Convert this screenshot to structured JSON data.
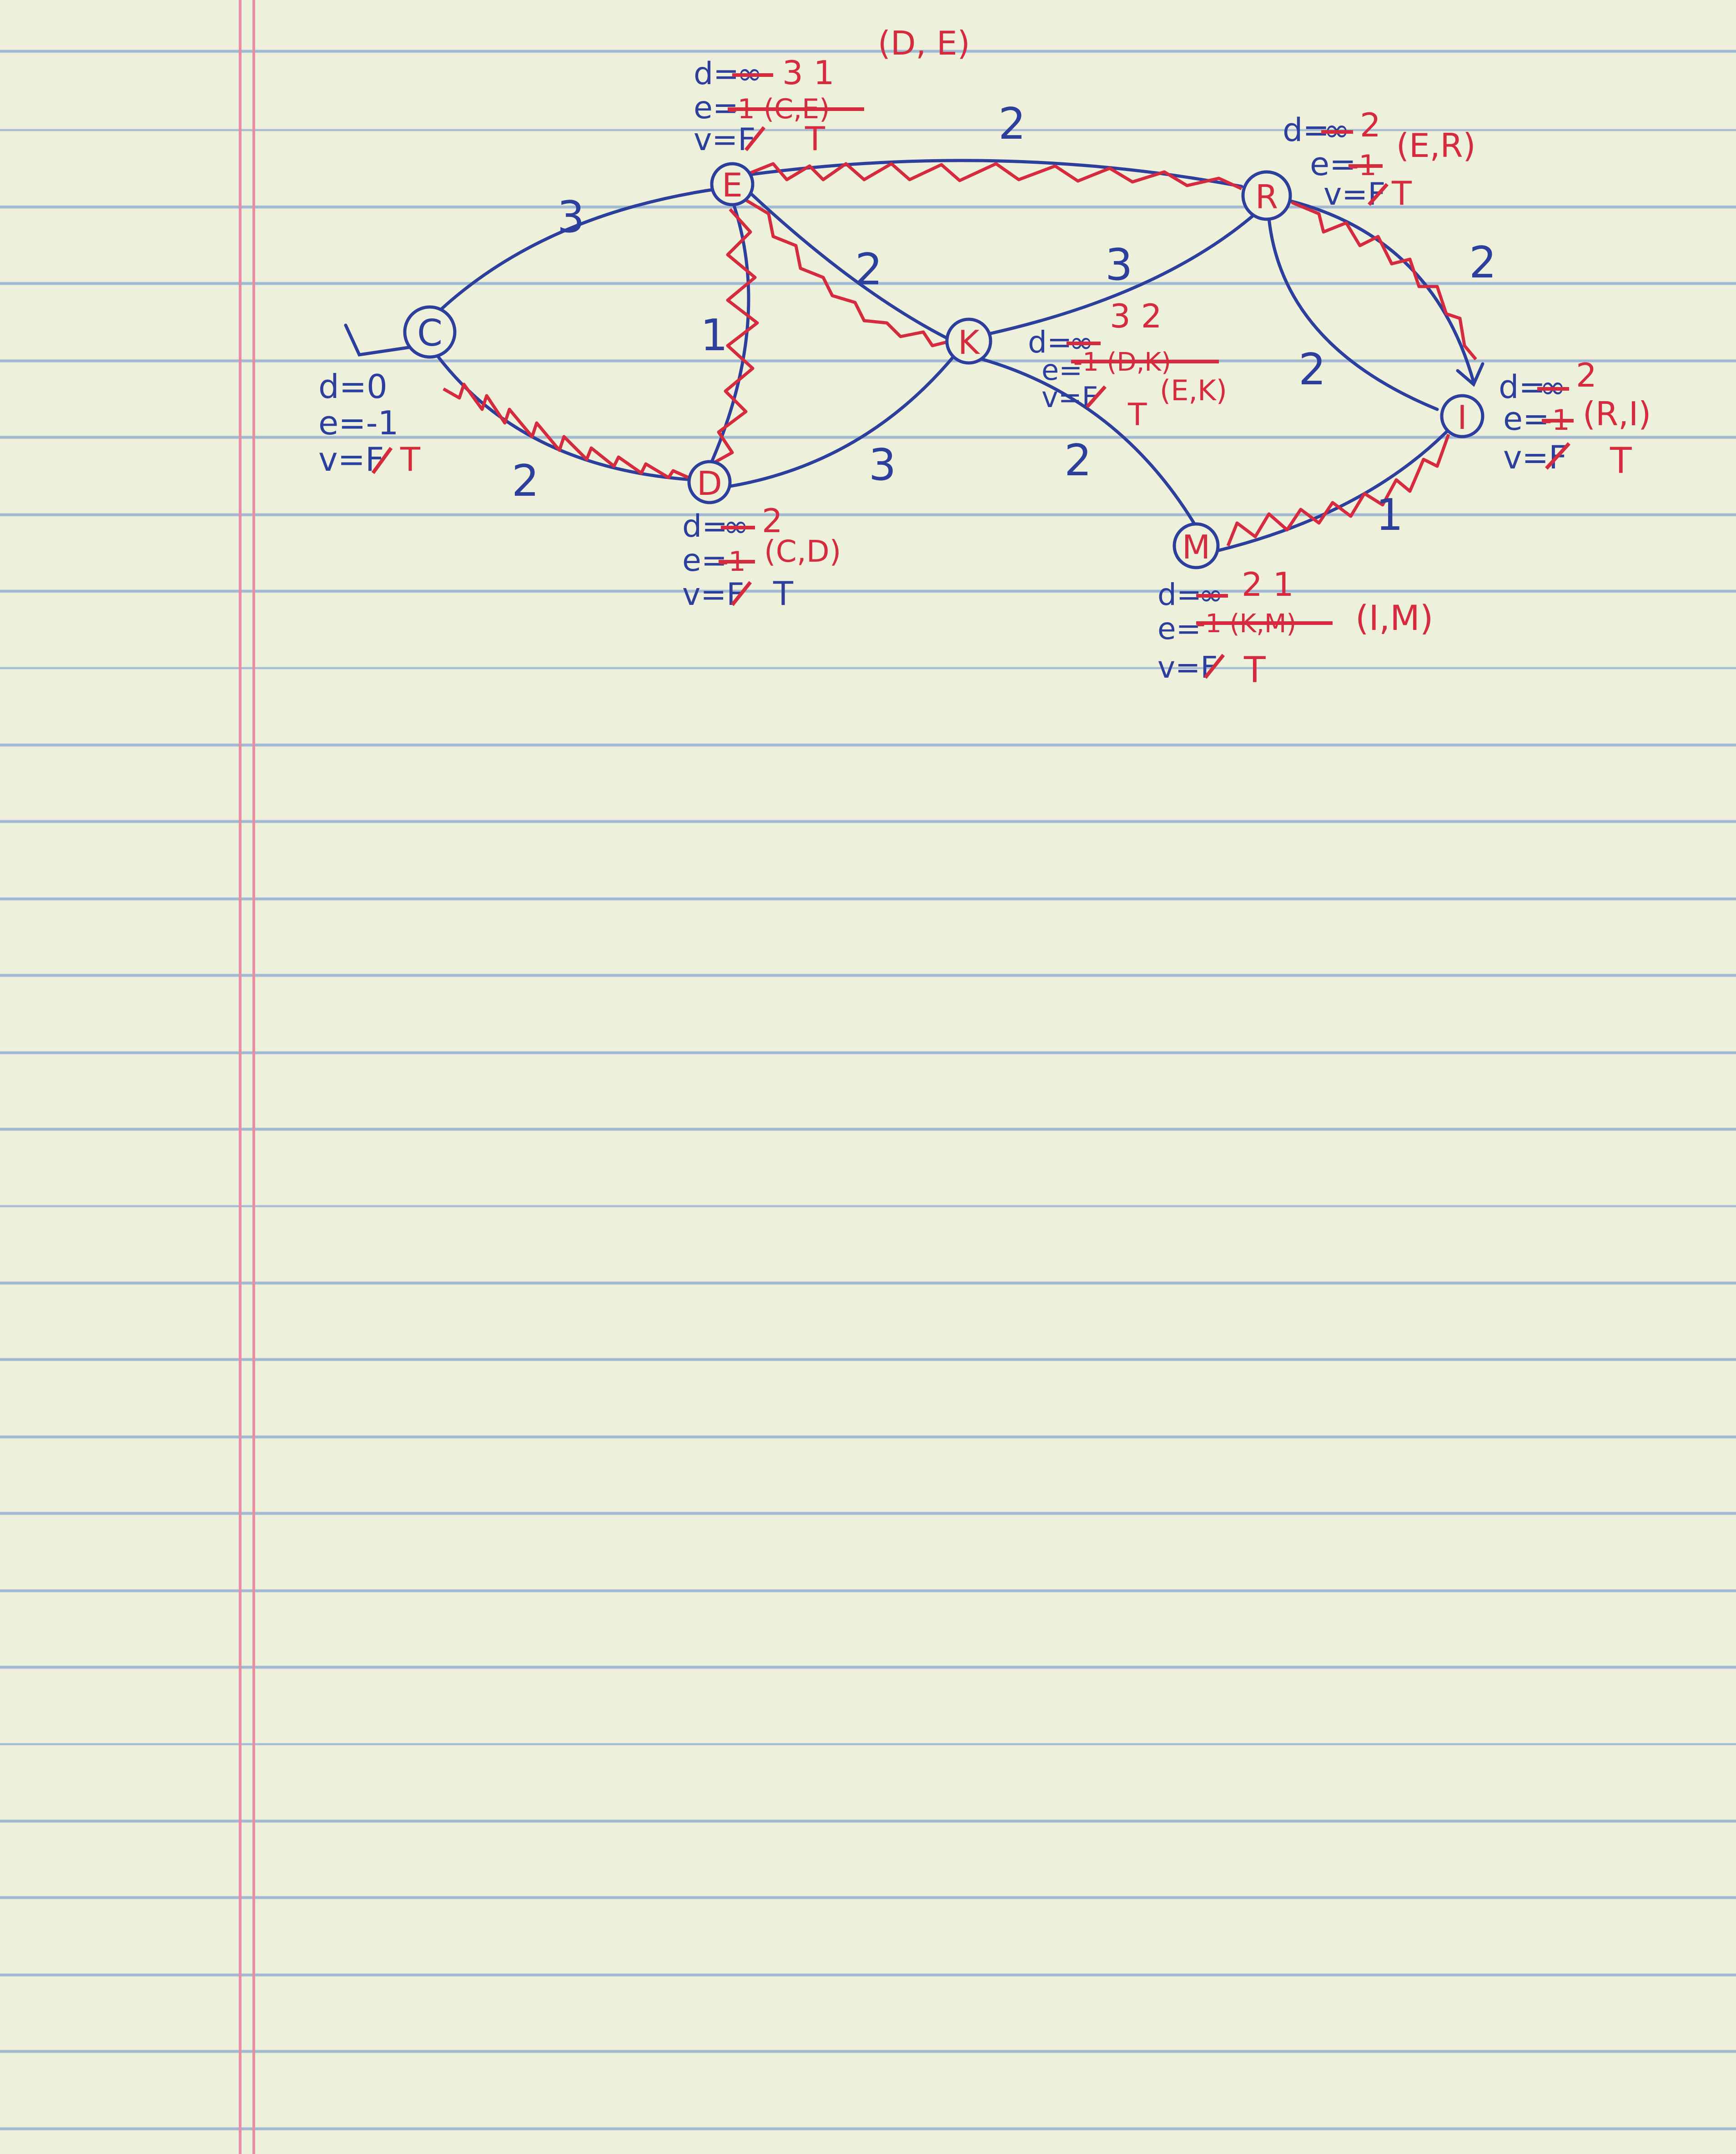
{
  "nodes": [
    {
      "id": "C",
      "label": "C",
      "d": "d=0",
      "e": "e=-1",
      "v_old": "v=F",
      "v_new": "T",
      "d_old": "",
      "d_new": "",
      "e_old": "",
      "e_new": ""
    },
    {
      "id": "E",
      "label": "E",
      "d": "d=",
      "d_old": "∞",
      "d_new": "3 1",
      "e": "e=",
      "e_old": "-1 (C,E)",
      "e_new": "(D, E)",
      "v_old": "v=F",
      "v_new": "T"
    },
    {
      "id": "D",
      "label": "D",
      "d": "d=",
      "d_old": "∞",
      "d_new": "2",
      "e": "e=",
      "e_old": "-1",
      "e_new": "(C,D)",
      "v_old": "v=F",
      "v_new": "T"
    },
    {
      "id": "K",
      "label": "K",
      "d": "d=",
      "d_old": "∞",
      "d_new": "3 2",
      "e": "e=",
      "e_old": "-1 (D,K)",
      "e_new": "(E,K)",
      "v_old": "v=F",
      "v_new": "T"
    },
    {
      "id": "R",
      "label": "R",
      "d": "d=",
      "d_old": "∞",
      "d_new": "2",
      "e": "e=",
      "e_old": "-1",
      "e_new": "(E,R)",
      "v_old": "v=F",
      "v_new": "T"
    },
    {
      "id": "I",
      "label": "I",
      "d": "d=",
      "d_old": "∞",
      "d_new": "2",
      "e": "e=",
      "e_old": "-1",
      "e_new": "(R,I)",
      "v_old": "v=F",
      "v_new": "T"
    },
    {
      "id": "M",
      "label": "M",
      "d": "d=",
      "d_old": "∞",
      "d_new": "2 1",
      "e": "e=",
      "e_old": "-1 (K,M)",
      "e_new": "(I,M)",
      "v_old": "v=F",
      "v_new": "T"
    }
  ],
  "edges": [
    {
      "from": "C",
      "to": "E",
      "weight": "3",
      "in_tree": false
    },
    {
      "from": "C",
      "to": "D",
      "weight": "2",
      "in_tree": true
    },
    {
      "from": "E",
      "to": "D",
      "weight": "1",
      "in_tree": true
    },
    {
      "from": "E",
      "to": "R",
      "weight": "2",
      "in_tree": true
    },
    {
      "from": "E",
      "to": "K",
      "weight": "2",
      "in_tree": true
    },
    {
      "from": "D",
      "to": "K",
      "weight": "3",
      "in_tree": false
    },
    {
      "from": "K",
      "to": "R",
      "weight": "3",
      "in_tree": false
    },
    {
      "from": "R",
      "to": "I",
      "weight": "2",
      "in_tree": false
    },
    {
      "from": "R",
      "to": "I",
      "weight": "2",
      "in_tree": true
    },
    {
      "from": "K",
      "to": "M",
      "weight": "2",
      "in_tree": false
    },
    {
      "from": "M",
      "to": "I",
      "weight": "1",
      "in_tree": true
    }
  ],
  "colors": {
    "blue_ink": "#2c3f9c",
    "red_ink": "#d62a3f",
    "paper": "#eef0da",
    "rule_line": "#9fb8d4",
    "margin_line": "#e88ea0"
  }
}
